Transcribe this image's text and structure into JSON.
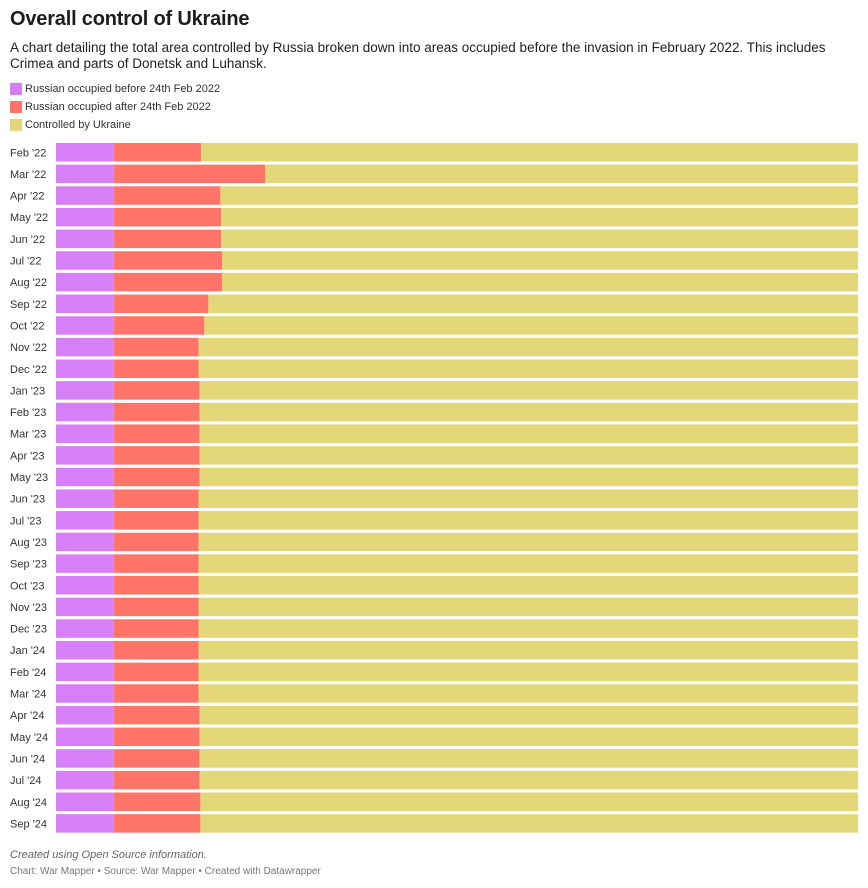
{
  "title": "Overall control of Ukraine",
  "subtitle": "A chart detailing the total area controlled by Russia broken down into areas occupied before the invasion in February 2022. This includes Crimea and parts of Donetsk and Luhansk.",
  "legend": [
    {
      "label": "Russian occupied before 24th Feb 2022",
      "color": "#d77ff6"
    },
    {
      "label": "Russian occupied after 24th Feb 2022",
      "color": "#ff7468"
    },
    {
      "label": "Controlled by Ukraine",
      "color": "#e3d779"
    }
  ],
  "notes": "Created using Open Source information.",
  "footer": "Chart: War Mapper • Source: War Mapper • Created with Datawrapper",
  "chart_data": {
    "type": "bar",
    "orientation": "horizontal",
    "stacked": true,
    "normalized_to_percent": true,
    "categories": [
      "Feb '22",
      "Mar '22",
      "Apr '22",
      "May '22",
      "Jun '22",
      "Jul '22",
      "Aug '22",
      "Sep '22",
      "Oct '22",
      "Nov '22",
      "Dec '22",
      "Jan '23",
      "Feb '23",
      "Mar '23",
      "Apr '23",
      "May '23",
      "Jun '23",
      "Jul '23",
      "Aug '23",
      "Sep '23",
      "Oct '23",
      "Nov '23",
      "Dec '23",
      "Jan '24",
      "Feb '24",
      "Mar '24",
      "Apr '24",
      "May '24",
      "Jun '24",
      "Jul '24",
      "Aug '24",
      "Sep '24"
    ],
    "series": [
      {
        "name": "Russian occupied before 24th Feb 2022",
        "color": "#d77ff6",
        "values": [
          7.2,
          7.2,
          7.2,
          7.2,
          7.2,
          7.2,
          7.2,
          7.2,
          7.2,
          7.2,
          7.2,
          7.2,
          7.2,
          7.2,
          7.2,
          7.2,
          7.2,
          7.2,
          7.2,
          7.2,
          7.2,
          7.2,
          7.2,
          7.2,
          7.2,
          7.2,
          7.2,
          7.2,
          7.2,
          7.2,
          7.2,
          7.2
        ]
      },
      {
        "name": "Russian occupied after 24th Feb 2022",
        "color": "#ff7468",
        "values": [
          10.9,
          18.9,
          13.3,
          13.4,
          13.4,
          13.5,
          13.5,
          11.8,
          11.3,
          10.6,
          10.6,
          10.7,
          10.7,
          10.7,
          10.7,
          10.7,
          10.6,
          10.6,
          10.6,
          10.6,
          10.6,
          10.6,
          10.6,
          10.6,
          10.6,
          10.6,
          10.7,
          10.7,
          10.7,
          10.7,
          10.8,
          10.8
        ]
      },
      {
        "name": "Controlled by Ukraine",
        "color": "#e3d779",
        "values": [
          81.9,
          73.9,
          79.5,
          79.4,
          79.4,
          79.3,
          79.3,
          81.0,
          81.5,
          82.2,
          82.2,
          82.1,
          82.1,
          82.1,
          82.1,
          82.1,
          82.2,
          82.2,
          82.2,
          82.2,
          82.2,
          82.2,
          82.2,
          82.2,
          82.2,
          82.2,
          82.1,
          82.1,
          82.1,
          82.1,
          82.0,
          82.0
        ]
      }
    ],
    "xlim": [
      0,
      100
    ],
    "grid": false,
    "legend_position": "top-left"
  }
}
